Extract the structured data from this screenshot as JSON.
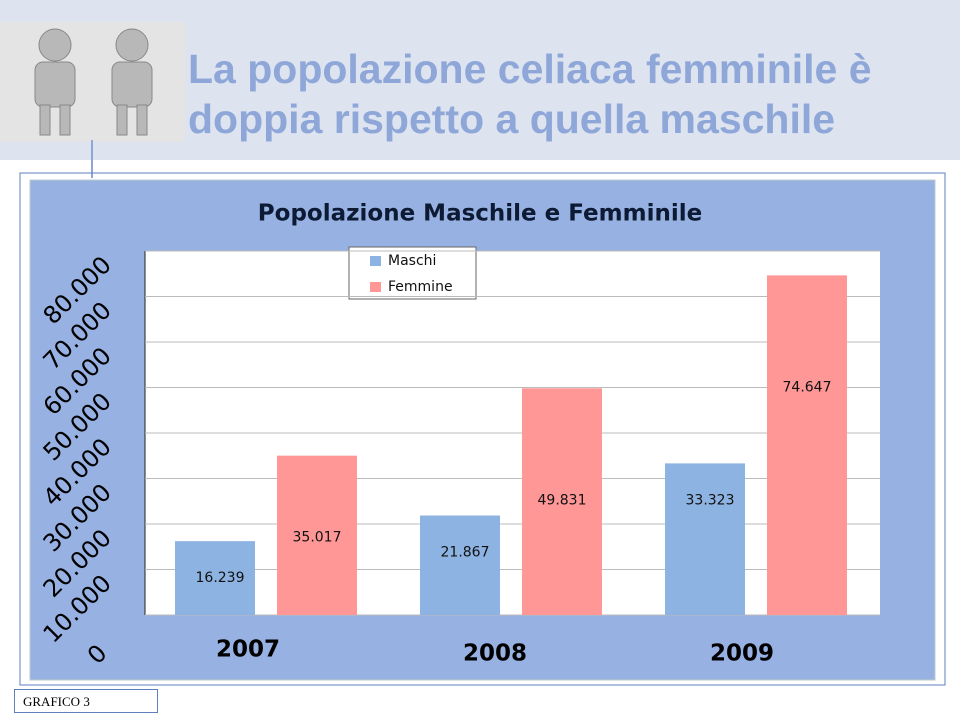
{
  "slide": {
    "title": "La popolazione celiaca femminile è doppia rispetto a quella maschile",
    "footer": "GRAFICO 3"
  },
  "chart_data": {
    "type": "bar",
    "title": "Popolazione Maschile e Femminile",
    "categories": [
      "2007",
      "2008",
      "2009"
    ],
    "series": [
      {
        "name": "Maschi",
        "color": "#8db3e2",
        "values": [
          16239,
          21867,
          33323
        ],
        "value_labels": [
          "16.239",
          "21.867",
          "33.323"
        ]
      },
      {
        "name": "Femmine",
        "color": "#ff9797",
        "values": [
          35017,
          49831,
          74647
        ],
        "value_labels": [
          "35.017",
          "49.831",
          "74.647"
        ]
      }
    ],
    "ylim": [
      0,
      80000
    ],
    "yticks": [
      0,
      {
        "value": 10000,
        "label": "10.000"
      },
      {
        "value": 20000,
        "label": "20.000"
      },
      {
        "value": 30000,
        "label": "30.000"
      },
      {
        "value": 40000,
        "label": "40.000"
      },
      {
        "value": 50000,
        "label": "50.000"
      },
      {
        "value": 60000,
        "label": "60.000"
      },
      {
        "value": 70000,
        "label": "70.000"
      },
      {
        "value": 80000,
        "label": "80.000"
      }
    ],
    "grid": true,
    "legend": "top"
  }
}
